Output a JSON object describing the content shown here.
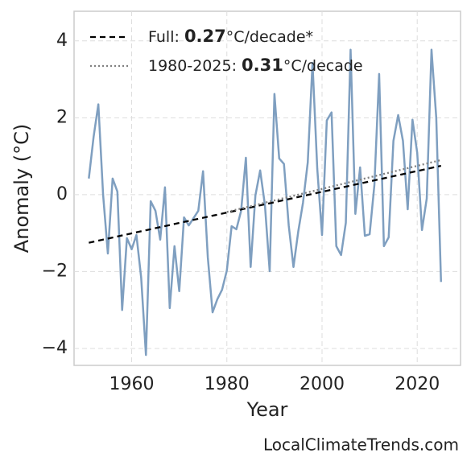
{
  "chart_data": {
    "type": "line",
    "xlabel": "Year",
    "ylabel": "Anomaly (°C)",
    "footer": "LocalClimateTrends.com",
    "x": [
      1951,
      1952,
      1953,
      1954,
      1955,
      1956,
      1957,
      1958,
      1959,
      1960,
      1961,
      1962,
      1963,
      1964,
      1965,
      1966,
      1967,
      1968,
      1969,
      1970,
      1971,
      1972,
      1973,
      1974,
      1975,
      1976,
      1977,
      1978,
      1979,
      1980,
      1981,
      1982,
      1983,
      1984,
      1985,
      1986,
      1987,
      1988,
      1989,
      1990,
      1991,
      1992,
      1993,
      1994,
      1995,
      1996,
      1997,
      1998,
      1999,
      2000,
      2001,
      2002,
      2003,
      2004,
      2005,
      2006,
      2007,
      2008,
      2009,
      2010,
      2011,
      2012,
      2013,
      2014,
      2015,
      2016,
      2017,
      2018,
      2019,
      2020,
      2021,
      2022,
      2023,
      2024,
      2025
    ],
    "series": [
      {
        "color": "#7f9fc0",
        "values": [
          0.42,
          1.5,
          2.35,
          0.0,
          -1.53,
          0.42,
          0.08,
          -3.0,
          -1.13,
          -1.42,
          -1.05,
          -2.16,
          -4.17,
          -0.17,
          -0.42,
          -1.17,
          0.19,
          -2.95,
          -1.34,
          -2.51,
          -0.59,
          -0.8,
          -0.61,
          -0.42,
          0.61,
          -1.63,
          -3.06,
          -2.72,
          -2.47,
          -1.97,
          -0.82,
          -0.9,
          -0.42,
          0.96,
          -1.88,
          -0.02,
          0.63,
          -0.27,
          -1.99,
          2.62,
          0.94,
          0.8,
          -0.8,
          -1.88,
          -0.96,
          -0.21,
          0.84,
          3.43,
          0.67,
          -1.05,
          1.93,
          2.14,
          -1.34,
          -1.57,
          -0.73,
          3.77,
          -0.5,
          0.71,
          -1.07,
          -1.03,
          0.25,
          3.14,
          -1.34,
          -1.11,
          1.4,
          2.07,
          1.4,
          -0.38,
          1.95,
          1.09,
          -0.92,
          -0.1,
          3.77,
          2.0,
          -2.27
        ]
      }
    ],
    "trends": [
      {
        "name_parts": [
          "Full: ",
          0.27,
          "°C/decade*"
        ],
        "color": "#000000",
        "dash": "7,5",
        "x": [
          1951,
          2025
        ],
        "values": [
          -1.25,
          0.75
        ]
      },
      {
        "name_parts": [
          "1980-2025: ",
          0.31,
          "°C/decade"
        ],
        "color": "#808080",
        "dash": "2,3",
        "x": [
          1980,
          2025
        ],
        "values": [
          -0.45,
          0.9
        ]
      }
    ],
    "xlim": [
      1947.9,
      2029.1
    ],
    "xticks": [
      1960,
      1980,
      2000,
      2020
    ],
    "ylim": [
      -4.44,
      4.77
    ],
    "yticks": [
      {
        "value": -4,
        "label": "−4"
      },
      {
        "value": -2,
        "label": "−2"
      },
      0,
      2,
      4
    ],
    "grid": true,
    "legend": "upper left"
  }
}
